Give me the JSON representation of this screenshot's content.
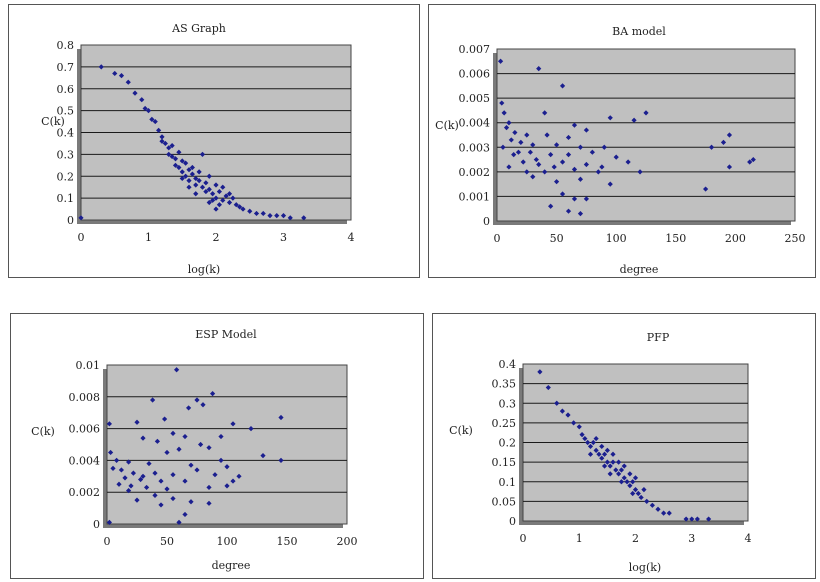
{
  "chart_data": [
    {
      "type": "scatter",
      "title": "AS Graph",
      "xlabel": "log(k)",
      "ylabel": "C(k)",
      "xlim": [
        0,
        4
      ],
      "ylim": [
        0,
        0.8
      ],
      "xticks": [
        "0",
        "1",
        "2",
        "3",
        "4"
      ],
      "yticks": [
        "0",
        "0.1",
        "0.2",
        "0.3",
        "0.4",
        "0.5",
        "0.6",
        "0.7",
        "0.8"
      ],
      "grid": true,
      "points": [
        [
          0.3,
          0.7
        ],
        [
          0.5,
          0.67
        ],
        [
          0.6,
          0.66
        ],
        [
          0.7,
          0.63
        ],
        [
          0.8,
          0.58
        ],
        [
          0.9,
          0.55
        ],
        [
          0.95,
          0.51
        ],
        [
          1.0,
          0.5
        ],
        [
          1.05,
          0.46
        ],
        [
          1.1,
          0.45
        ],
        [
          1.15,
          0.41
        ],
        [
          1.2,
          0.38
        ],
        [
          1.2,
          0.36
        ],
        [
          1.25,
          0.35
        ],
        [
          1.3,
          0.33
        ],
        [
          1.3,
          0.3
        ],
        [
          1.35,
          0.29
        ],
        [
          1.4,
          0.28
        ],
        [
          1.4,
          0.25
        ],
        [
          1.45,
          0.24
        ],
        [
          1.5,
          0.27
        ],
        [
          1.5,
          0.22
        ],
        [
          1.55,
          0.2
        ],
        [
          1.6,
          0.23
        ],
        [
          1.6,
          0.18
        ],
        [
          1.65,
          0.21
        ],
        [
          1.7,
          0.19
        ],
        [
          1.7,
          0.16
        ],
        [
          1.75,
          0.22
        ],
        [
          1.8,
          0.15
        ],
        [
          1.8,
          0.3
        ],
        [
          1.85,
          0.17
        ],
        [
          1.9,
          0.14
        ],
        [
          1.9,
          0.2
        ],
        [
          1.95,
          0.12
        ],
        [
          2.0,
          0.16
        ],
        [
          2.0,
          0.1
        ],
        [
          2.05,
          0.13
        ],
        [
          2.1,
          0.09
        ],
        [
          2.1,
          0.15
        ],
        [
          2.15,
          0.11
        ],
        [
          2.2,
          0.08
        ],
        [
          2.2,
          0.12
        ],
        [
          2.3,
          0.07
        ],
        [
          2.35,
          0.06
        ],
        [
          2.4,
          0.05
        ],
        [
          2.5,
          0.04
        ],
        [
          2.6,
          0.03
        ],
        [
          2.7,
          0.03
        ],
        [
          2.8,
          0.02
        ],
        [
          2.9,
          0.02
        ],
        [
          3.0,
          0.02
        ],
        [
          3.1,
          0.01
        ],
        [
          3.3,
          0.01
        ],
        [
          1.35,
          0.34
        ],
        [
          1.45,
          0.31
        ],
        [
          1.55,
          0.26
        ],
        [
          1.65,
          0.24
        ],
        [
          1.75,
          0.18
        ],
        [
          1.85,
          0.13
        ],
        [
          1.95,
          0.09
        ],
        [
          2.05,
          0.07
        ],
        [
          2.25,
          0.1
        ],
        [
          1.5,
          0.19
        ],
        [
          1.7,
          0.12
        ],
        [
          1.9,
          0.08
        ],
        [
          2.0,
          0.05
        ],
        [
          1.6,
          0.15
        ],
        [
          0.0,
          0.01
        ]
      ]
    },
    {
      "type": "scatter",
      "title": "BA model",
      "xlabel": "degree",
      "ylabel": "C(k)",
      "xlim": [
        0,
        250
      ],
      "ylim": [
        0,
        0.007
      ],
      "xticks": [
        "0",
        "50",
        "100",
        "150",
        "200",
        "250"
      ],
      "yticks": [
        "0",
        "0.001",
        "0.002",
        "0.003",
        "0.004",
        "0.005",
        "0.006",
        "0.007"
      ],
      "grid": true,
      "points": [
        [
          3,
          0.0065
        ],
        [
          35,
          0.0062
        ],
        [
          55,
          0.0055
        ],
        [
          4,
          0.0048
        ],
        [
          6,
          0.0044
        ],
        [
          40,
          0.0044
        ],
        [
          125,
          0.0044
        ],
        [
          95,
          0.0042
        ],
        [
          115,
          0.0041
        ],
        [
          10,
          0.004
        ],
        [
          8,
          0.0038
        ],
        [
          65,
          0.0039
        ],
        [
          75,
          0.0037
        ],
        [
          15,
          0.0036
        ],
        [
          25,
          0.0035
        ],
        [
          42,
          0.0035
        ],
        [
          60,
          0.0034
        ],
        [
          12,
          0.0033
        ],
        [
          20,
          0.0032
        ],
        [
          30,
          0.0031
        ],
        [
          50,
          0.0031
        ],
        [
          70,
          0.003
        ],
        [
          90,
          0.003
        ],
        [
          180,
          0.003
        ],
        [
          195,
          0.0035
        ],
        [
          190,
          0.0032
        ],
        [
          18,
          0.0028
        ],
        [
          28,
          0.0028
        ],
        [
          45,
          0.0027
        ],
        [
          60,
          0.0027
        ],
        [
          80,
          0.0028
        ],
        [
          100,
          0.0026
        ],
        [
          22,
          0.0024
        ],
        [
          35,
          0.0023
        ],
        [
          55,
          0.0024
        ],
        [
          75,
          0.0023
        ],
        [
          110,
          0.0024
        ],
        [
          212,
          0.0024
        ],
        [
          215,
          0.0025
        ],
        [
          195,
          0.0022
        ],
        [
          10,
          0.0022
        ],
        [
          25,
          0.002
        ],
        [
          40,
          0.002
        ],
        [
          65,
          0.0021
        ],
        [
          85,
          0.002
        ],
        [
          120,
          0.002
        ],
        [
          30,
          0.0018
        ],
        [
          50,
          0.0016
        ],
        [
          70,
          0.0017
        ],
        [
          95,
          0.0015
        ],
        [
          175,
          0.0013
        ],
        [
          55,
          0.0011
        ],
        [
          65,
          0.0009
        ],
        [
          75,
          0.0009
        ],
        [
          45,
          0.0006
        ],
        [
          60,
          0.0004
        ],
        [
          70,
          0.0003
        ],
        [
          5,
          0.003
        ],
        [
          14,
          0.0027
        ],
        [
          33,
          0.0025
        ],
        [
          48,
          0.0022
        ],
        [
          88,
          0.0022
        ]
      ]
    },
    {
      "type": "scatter",
      "title": "ESP Model",
      "xlabel": "degree",
      "ylabel": "C(k)",
      "xlim": [
        0,
        200
      ],
      "ylim": [
        0,
        0.01
      ],
      "xticks": [
        "0",
        "50",
        "100",
        "150",
        "200"
      ],
      "yticks": [
        "0",
        "0.002",
        "0.004",
        "0.006",
        "0.008",
        "0.01"
      ],
      "grid": true,
      "points": [
        [
          58,
          0.0097
        ],
        [
          88,
          0.0082
        ],
        [
          38,
          0.0078
        ],
        [
          75,
          0.0078
        ],
        [
          80,
          0.0075
        ],
        [
          68,
          0.0073
        ],
        [
          145,
          0.0067
        ],
        [
          48,
          0.0066
        ],
        [
          25,
          0.0064
        ],
        [
          105,
          0.0063
        ],
        [
          2,
          0.0063
        ],
        [
          120,
          0.006
        ],
        [
          55,
          0.0057
        ],
        [
          65,
          0.0055
        ],
        [
          95,
          0.0055
        ],
        [
          30,
          0.0054
        ],
        [
          42,
          0.0052
        ],
        [
          78,
          0.005
        ],
        [
          85,
          0.0048
        ],
        [
          60,
          0.0047
        ],
        [
          3,
          0.0045
        ],
        [
          50,
          0.0045
        ],
        [
          130,
          0.0043
        ],
        [
          145,
          0.004
        ],
        [
          8,
          0.004
        ],
        [
          18,
          0.0039
        ],
        [
          35,
          0.0038
        ],
        [
          70,
          0.0037
        ],
        [
          100,
          0.0036
        ],
        [
          5,
          0.0035
        ],
        [
          12,
          0.0034
        ],
        [
          22,
          0.0032
        ],
        [
          40,
          0.0032
        ],
        [
          55,
          0.0031
        ],
        [
          90,
          0.0031
        ],
        [
          15,
          0.0029
        ],
        [
          28,
          0.0028
        ],
        [
          45,
          0.0027
        ],
        [
          65,
          0.0027
        ],
        [
          105,
          0.0027
        ],
        [
          10,
          0.0025
        ],
        [
          20,
          0.0024
        ],
        [
          33,
          0.0023
        ],
        [
          50,
          0.0022
        ],
        [
          85,
          0.0023
        ],
        [
          100,
          0.0024
        ],
        [
          18,
          0.0021
        ],
        [
          40,
          0.0018
        ],
        [
          55,
          0.0016
        ],
        [
          70,
          0.0014
        ],
        [
          85,
          0.0013
        ],
        [
          25,
          0.0015
        ],
        [
          45,
          0.0012
        ],
        [
          65,
          0.0006
        ],
        [
          60,
          0.0001
        ],
        [
          2,
          0.0001
        ],
        [
          30,
          0.003
        ],
        [
          75,
          0.0034
        ],
        [
          95,
          0.004
        ],
        [
          110,
          0.003
        ]
      ]
    },
    {
      "type": "scatter",
      "title": "PFP",
      "xlabel": "log(k)",
      "ylabel": "C(k)",
      "xlim": [
        0,
        4
      ],
      "ylim": [
        0,
        0.4
      ],
      "xticks": [
        "0",
        "1",
        "2",
        "3",
        "4"
      ],
      "yticks": [
        "0",
        "0.05",
        "0.1",
        "0.15",
        "0.2",
        "0.25",
        "0.3",
        "0.35",
        "0.4"
      ],
      "grid": true,
      "points": [
        [
          0.3,
          0.38
        ],
        [
          0.45,
          0.34
        ],
        [
          0.6,
          0.3
        ],
        [
          0.7,
          0.28
        ],
        [
          0.8,
          0.27
        ],
        [
          0.9,
          0.25
        ],
        [
          1.0,
          0.24
        ],
        [
          1.05,
          0.22
        ],
        [
          1.1,
          0.21
        ],
        [
          1.15,
          0.2
        ],
        [
          1.2,
          0.19
        ],
        [
          1.25,
          0.2
        ],
        [
          1.3,
          0.18
        ],
        [
          1.35,
          0.17
        ],
        [
          1.4,
          0.16
        ],
        [
          1.45,
          0.17
        ],
        [
          1.5,
          0.15
        ],
        [
          1.55,
          0.14
        ],
        [
          1.6,
          0.15
        ],
        [
          1.65,
          0.13
        ],
        [
          1.7,
          0.12
        ],
        [
          1.75,
          0.13
        ],
        [
          1.8,
          0.11
        ],
        [
          1.85,
          0.1
        ],
        [
          1.9,
          0.09
        ],
        [
          1.95,
          0.1
        ],
        [
          2.0,
          0.08
        ],
        [
          2.05,
          0.07
        ],
        [
          2.1,
          0.06
        ],
        [
          2.2,
          0.05
        ],
        [
          2.3,
          0.04
        ],
        [
          2.4,
          0.03
        ],
        [
          2.5,
          0.02
        ],
        [
          2.6,
          0.02
        ],
        [
          2.9,
          0.005
        ],
        [
          3.0,
          0.005
        ],
        [
          3.1,
          0.005
        ],
        [
          3.3,
          0.005
        ],
        [
          1.3,
          0.21
        ],
        [
          1.4,
          0.19
        ],
        [
          1.5,
          0.18
        ],
        [
          1.6,
          0.17
        ],
        [
          1.7,
          0.15
        ],
        [
          1.8,
          0.14
        ],
        [
          1.9,
          0.12
        ],
        [
          2.0,
          0.11
        ],
        [
          1.55,
          0.12
        ],
        [
          1.75,
          0.1
        ],
        [
          1.95,
          0.07
        ],
        [
          2.15,
          0.08
        ],
        [
          1.2,
          0.17
        ],
        [
          1.45,
          0.14
        ]
      ]
    }
  ]
}
